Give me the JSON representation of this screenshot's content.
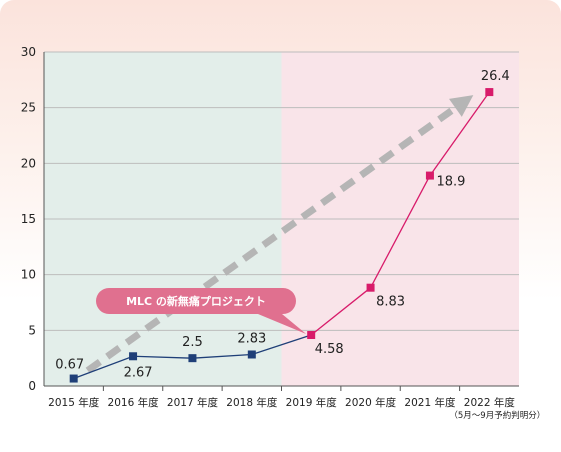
{
  "chart_data": {
    "type": "line",
    "categories": [
      "2015 年度",
      "2016 年度",
      "2017 年度",
      "2018 年度",
      "2019 年度",
      "2020 年度",
      "2021 年度",
      "2022 年度"
    ],
    "category_note": "（5月〜9月予約判明分）",
    "series": [
      {
        "values": [
          0.67,
          2.67,
          2.5,
          2.83,
          4.58,
          8.83,
          18.9,
          26.4
        ],
        "colors": [
          "#1f3f78",
          "#d81b6a"
        ]
      }
    ],
    "data_labels": [
      "0.67",
      "2.67",
      "2.5",
      "2.83",
      "4.58",
      "8.83",
      "18.9",
      "26.4"
    ],
    "ylim": [
      0,
      30
    ],
    "yticks": [
      "0",
      "5",
      "10",
      "15",
      "20",
      "25",
      "30"
    ],
    "grid": true,
    "trend_arrow": {
      "from": 0.67,
      "to": 26.4,
      "color": "#b5b5b5"
    },
    "shaded_regions": [
      {
        "from": "2015 年度",
        "to": "2018 年度",
        "color": "#e3eeea"
      },
      {
        "from": "2019 年度",
        "to": "2022 年度",
        "color": "#f9e4e9"
      }
    ],
    "annotation": {
      "text": "MLC の新無痛プロジェクト",
      "target": "2019 年度",
      "color": "#e0708f"
    }
  }
}
